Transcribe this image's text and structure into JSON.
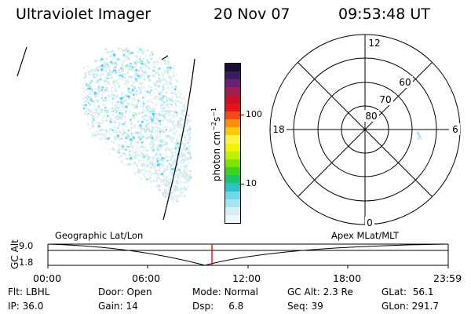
{
  "header": {
    "title": "Ultraviolet Imager",
    "date": "20 Nov 07",
    "time": "09:53:48 UT"
  },
  "colorbar": {
    "ticks": [
      "100",
      "10"
    ],
    "label_main": "photon cm",
    "label_exp1": "−2",
    "label_mid": "s",
    "label_exp2": "−1",
    "colors": [
      "#1a0f2e",
      "#3a1c63",
      "#6b1f73",
      "#9b1f4e",
      "#c9102a",
      "#e8101a",
      "#f5481a",
      "#ff8c10",
      "#ffc60a",
      "#fff23a",
      "#eef500",
      "#bff000",
      "#7ce600",
      "#3ad31f",
      "#19c46b",
      "#2ac3c6",
      "#6ed9e8",
      "#a6e6f0",
      "#d4eef2",
      "#eef6f8"
    ]
  },
  "polar_plot": {
    "mlt_labels": {
      "top": "12",
      "left": "18",
      "right": "6",
      "bottom": "0"
    },
    "lat_labels": [
      "60",
      "70",
      "80"
    ]
  },
  "timeline": {
    "axis_title": "GC Alt",
    "y_labels": [
      "9.0",
      "1.8"
    ],
    "left_label": "Geographic Lat/Lon",
    "right_label": "Apex MLat/MLT",
    "x_labels": [
      "00:00",
      "06:00",
      "12:00",
      "18:00",
      "23:59"
    ],
    "current_time_color": "#e00000"
  },
  "footer": {
    "row1": [
      {
        "label": "Flt:",
        "value": "LBHL"
      },
      {
        "label": "Door:",
        "value": "Open"
      },
      {
        "label": "Mode:",
        "value": "Normal"
      },
      {
        "label": "GC Alt:",
        "value": "2.3 Re"
      },
      {
        "label": "GLat:",
        "value": "56.1"
      }
    ],
    "row2": [
      {
        "label": "IP:",
        "value": "36.0"
      },
      {
        "label": "Gain:",
        "value": "14"
      },
      {
        "label": "Dsp:",
        "value": "6.8"
      },
      {
        "label": "Seq:",
        "value": "39"
      },
      {
        "label": "GLon:",
        "value": "291.7"
      }
    ]
  }
}
